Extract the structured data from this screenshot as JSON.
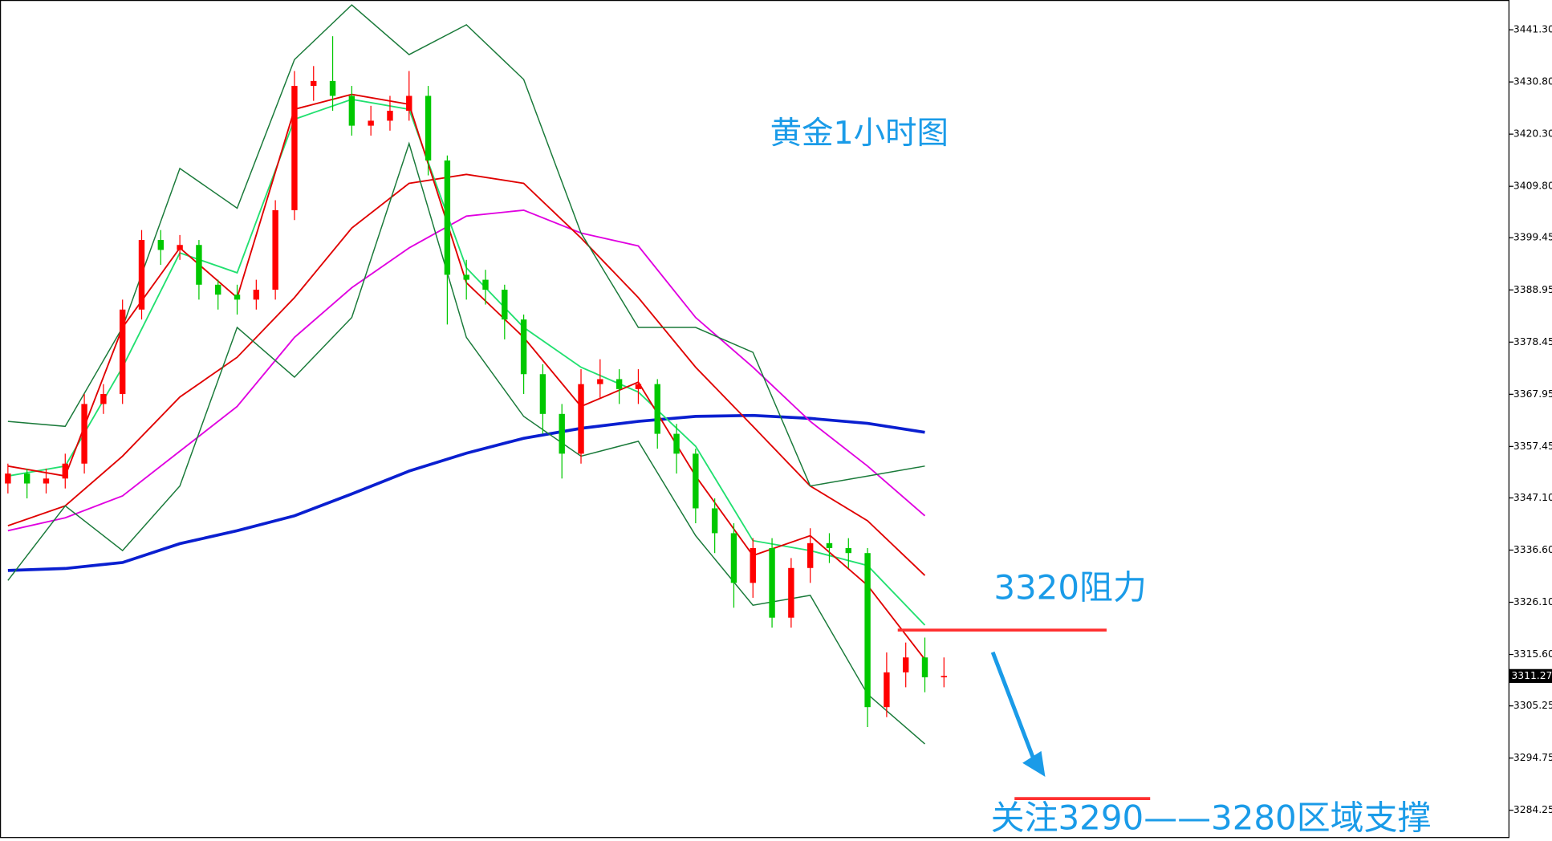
{
  "chart_data": {
    "type": "candlestick",
    "title": "黄金1小时图",
    "annotations": [
      "3320阻力",
      "关注3290——3280区域支撑"
    ],
    "ylim": [
      3278.66,
      3447.29
    ],
    "yticks": [
      {
        "value": 3441.3,
        "label": "3441.30"
      },
      {
        "value": 3430.8,
        "label": "3430.80"
      },
      {
        "value": 3420.3,
        "label": "3420.30"
      },
      {
        "value": 3409.8,
        "label": "3409.80"
      },
      {
        "value": 3399.45,
        "label": "3399.45"
      },
      {
        "value": 3388.95,
        "label": "3388.95"
      },
      {
        "value": 3378.45,
        "label": "3378.45"
      },
      {
        "value": 3367.95,
        "label": "3367.95"
      },
      {
        "value": 3357.45,
        "label": "3357.45"
      },
      {
        "value": 3347.1,
        "label": "3347.10"
      },
      {
        "value": 3336.6,
        "label": "3336.60"
      },
      {
        "value": 3326.1,
        "label": "3326.10"
      },
      {
        "value": 3315.6,
        "label": "3315.60"
      },
      {
        "value": 3305.25,
        "label": "3305.25"
      },
      {
        "value": 3294.75,
        "label": "3294.75"
      },
      {
        "value": 3284.25,
        "label": "3284.25"
      }
    ],
    "last_price": 3311.27,
    "up_color": "#ff0000",
    "down_color": "#00c800",
    "open": [
      3350,
      3352,
      3350,
      3351,
      3354,
      3366,
      3368,
      3385,
      3399,
      3397,
      3398,
      3390,
      3388,
      3387,
      3389,
      3405,
      3430,
      3431,
      3428,
      3422,
      3423,
      3425,
      3428,
      3415,
      3392,
      3391,
      3389,
      3383,
      3372,
      3364,
      3356,
      3370,
      3371,
      3369,
      3370,
      3360,
      3356,
      3345,
      3340,
      3330,
      3337,
      3323,
      3333,
      3338,
      3337,
      3336,
      3305,
      3312,
      3315,
      3311
    ],
    "high": [
      3354,
      3353,
      3353,
      3356,
      3368,
      3370,
      3387,
      3401,
      3401,
      3400,
      3399,
      3391,
      3390,
      3391,
      3407,
      3433,
      3434,
      3440,
      3430,
      3426,
      3428,
      3433,
      3430,
      3416,
      3395,
      3393,
      3390,
      3384,
      3374,
      3366,
      3373,
      3375,
      3373,
      3373,
      3371,
      3362,
      3357,
      3347,
      3342,
      3339,
      3339,
      3335,
      3341,
      3340,
      3339,
      3337,
      3316,
      3318,
      3319,
      3315
    ],
    "low": [
      3348,
      3347,
      3348,
      3349,
      3352,
      3364,
      3366,
      3383,
      3394,
      3395,
      3387,
      3385,
      3384,
      3385,
      3387,
      3403,
      3427,
      3425,
      3420,
      3420,
      3421,
      3423,
      3412,
      3382,
      3387,
      3386,
      3379,
      3368,
      3360,
      3351,
      3354,
      3367,
      3366,
      3366,
      3357,
      3352,
      3342,
      3336,
      3325,
      3327,
      3321,
      3321,
      3330,
      3334,
      3333,
      3301,
      3303,
      3309,
      3308,
      3309
    ],
    "close": [
      3352,
      3350,
      3351,
      3354,
      3366,
      3368,
      3385,
      3399,
      3397,
      3398,
      3390,
      3388,
      3387,
      3389,
      3405,
      3430,
      3431,
      3428,
      3422,
      3423,
      3425,
      3428,
      3415,
      3392,
      3391,
      3389,
      3383,
      3372,
      3364,
      3356,
      3370,
      3371,
      3369,
      3370,
      3360,
      3356,
      3345,
      3340,
      3330,
      3337,
      3323,
      3333,
      3338,
      3337,
      3336,
      3305,
      3312,
      3315,
      3311,
      3311.27
    ],
    "line_x": [
      0,
      3,
      6,
      9,
      12,
      15,
      18,
      21,
      24,
      27,
      30,
      33,
      36,
      39,
      42,
      45,
      48
    ],
    "series": [
      {
        "color": "#0a1fd0",
        "width": 3,
        "values": [
          3332.5,
          3332.9,
          3334.1,
          3337.9,
          3340.5,
          3343.5,
          3347.9,
          3352.5,
          3356.1,
          3359.1,
          3361.1,
          3362.5,
          3363.5,
          3363.7,
          3363.1,
          3362.1,
          3360.3
        ]
      },
      {
        "color": "#e000e0",
        "width": 1.5,
        "values": [
          3340.5,
          3343.1,
          3347.5,
          3356.5,
          3365.5,
          3379.4,
          3389.4,
          3397.4,
          3403.8,
          3405.0,
          3400.4,
          3397.8,
          3383.4,
          3373.4,
          3362.5,
          3353.5,
          3343.5
        ]
      },
      {
        "color": "#e00000",
        "width": 1.5,
        "values": [
          3341.5,
          3345.5,
          3355.5,
          3367.4,
          3375.4,
          3387.4,
          3401.4,
          3410.4,
          3412.2,
          3410.4,
          3399.4,
          3387.4,
          3373.4,
          3361.5,
          3349.5,
          3342.5,
          3331.5
        ]
      },
      {
        "color": "#1a7a3a",
        "width": 1.2,
        "values": [
          3362.5,
          3361.5,
          3381.4,
          3413.4,
          3405.4,
          3435.3,
          3446.3,
          3436.3,
          3442.3,
          3431.3,
          3400.4,
          3381.4,
          3381.4,
          3376.4,
          3349.5,
          3351.5,
          3353.5
        ]
      },
      {
        "color": "#1a7a3a",
        "width": 1.2,
        "values": [
          3330.5,
          3345.5,
          3336.5,
          3349.5,
          3381.4,
          3371.4,
          3383.4,
          3418.4,
          3379.4,
          3363.5,
          3355.5,
          3358.5,
          3339.5,
          3325.5,
          3327.5,
          3307.6,
          3297.6
        ]
      },
      {
        "color": "#22e070",
        "width": 1.5,
        "values": [
          3351.5,
          3353.5,
          3373.4,
          3396.4,
          3392.4,
          3423.3,
          3427.3,
          3425.3,
          3393.4,
          3381.4,
          3373.4,
          3368.4,
          3357.5,
          3338.5,
          3336.5,
          3333.5,
          3321.5
        ]
      },
      {
        "color": "#e00000",
        "width": 1.5,
        "values": [
          3353.5,
          3351.5,
          3381.4,
          3397.4,
          3387.4,
          3425.3,
          3428.3,
          3426.3,
          3390.4,
          3379.4,
          3365.5,
          3370.4,
          3351.5,
          3335.5,
          3339.5,
          3329.5,
          3314.6
        ]
      }
    ],
    "levels": [
      {
        "value": 3320.5,
        "color": "#ff3030"
      },
      {
        "value": 3286.6,
        "color": "#ff3030"
      }
    ],
    "text_color": "#1a9be8"
  }
}
